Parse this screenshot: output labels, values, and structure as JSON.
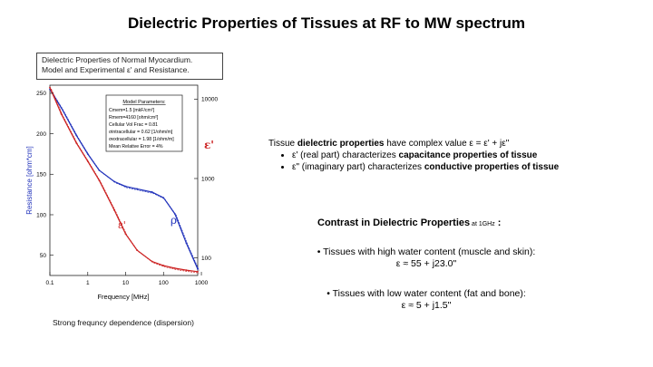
{
  "slide": {
    "title": "Dielectric Properties of Tissues at RF to MW spectrum",
    "figure_caption_line1": "Dielectric Properties of Normal Myocardium.",
    "figure_caption_line2": "Model and Experimental ε' and Resistance.",
    "dispersion_note": "Strong frequncy dependence (dispersion)",
    "intro_prefix": "Tissue ",
    "intro_bold": "dielectric properties",
    "intro_suffix": " have complex value ε = ε' + jε\"",
    "bullet1_prefix": "ε' (real part) characterizes ",
    "bullet1_bold": "capacitance properties of tissue",
    "bullet2_prefix": "ε\" (imaginary part) characterizes ",
    "bullet2_bold": "conductive properties of tissue",
    "contrast_heading": "Contrast in Dielectric Properties",
    "contrast_sub": " at 1GHz",
    "contrast_colon": " :",
    "high_water_line": "• Tissues with high water content (muscle and skin):",
    "high_water_value": "ε ≈ 55  + j23.0\"",
    "low_water_line": "• Tissues with low water content (fat and bone):",
    "low_water_value": "ε ≈ 5  + j1.5\""
  },
  "chart_data": {
    "type": "line",
    "xlabel": "Frequency [MHz]",
    "ylabel_left": "Resistance [ohm*cm]",
    "ylabel_right": "ε'",
    "x_scale": "log",
    "xlim": [
      0.1,
      800
    ],
    "x_ticks": [
      "0.1",
      "1",
      "10",
      "100",
      "1000"
    ],
    "y_left_lim": [
      25,
      260
    ],
    "y_left_ticks": [
      "50",
      "100",
      "150",
      "200",
      "250"
    ],
    "y_right_scale": "log",
    "y_right_lim": [
      60,
      15000
    ],
    "y_right_ticks": [
      "100",
      "1000",
      "10000"
    ],
    "legend_box": {
      "title": "Model Parameters:",
      "lines": [
        "Cmem=1.5 [mkF/cm²]",
        "Rmem=4160 [ohm/cm²]",
        "Cellular Vol Frac = 0.81",
        "σintracellular = 0.62 [1/ohm/m]",
        "σextracellular = 1.98 [1/ohm/m]",
        "Mean Relative Error = 4%"
      ]
    },
    "annotations": {
      "rho_label": "ρ",
      "eps_label": "ε'"
    },
    "colors": {
      "resistance": "#2233bb",
      "permittivity": "#cc2222",
      "axis": "#222222"
    },
    "series": [
      {
        "name": "ρ",
        "axis": "left",
        "color": "#2233bb",
        "x": [
          0.1,
          0.2,
          0.5,
          1,
          2,
          5,
          10,
          20,
          50,
          100,
          200,
          400,
          800
        ],
        "y": [
          255,
          232,
          198,
          175,
          155,
          141,
          135,
          132,
          128,
          121,
          101,
          65,
          33
        ]
      },
      {
        "name": "ε'",
        "axis": "right",
        "color": "#cc2222",
        "x": [
          0.1,
          0.2,
          0.5,
          1,
          2,
          5,
          10,
          20,
          50,
          100,
          200,
          400,
          800
        ],
        "y": [
          14000,
          6500,
          2800,
          1650,
          950,
          400,
          200,
          125,
          90,
          80,
          74,
          70,
          67
        ]
      }
    ]
  }
}
